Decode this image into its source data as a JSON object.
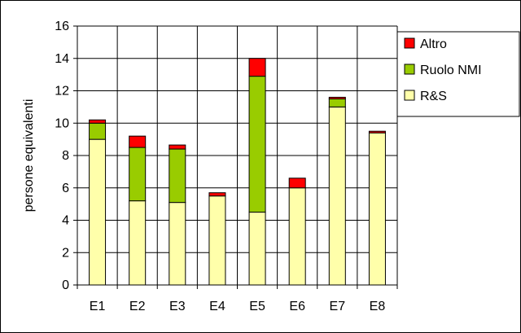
{
  "chart_data": {
    "type": "bar",
    "stacked": true,
    "title": "",
    "xlabel": "",
    "ylabel": "persone equivalenti",
    "ylim": [
      0,
      16
    ],
    "yticks": [
      0,
      2,
      4,
      6,
      8,
      10,
      12,
      14,
      16
    ],
    "grid": true,
    "legend_position": "top-right",
    "categories": [
      "E1",
      "E2",
      "E3",
      "E4",
      "E5",
      "E6",
      "E7",
      "E8"
    ],
    "series": [
      {
        "name": "R&S",
        "color": "#ffffaa",
        "values": [
          9.0,
          5.2,
          5.1,
          5.5,
          4.5,
          6.0,
          11.0,
          9.4
        ]
      },
      {
        "name": "Ruolo NMI",
        "color": "#99cc00",
        "values": [
          1.0,
          3.3,
          3.3,
          0.0,
          8.4,
          0.0,
          0.5,
          0.0
        ]
      },
      {
        "name": "Altro",
        "color": "#ff0000",
        "values": [
          0.2,
          0.7,
          0.25,
          0.2,
          1.1,
          0.6,
          0.1,
          0.1
        ]
      }
    ],
    "legend_order": [
      "Altro",
      "Ruolo NMI",
      "R&S"
    ]
  }
}
